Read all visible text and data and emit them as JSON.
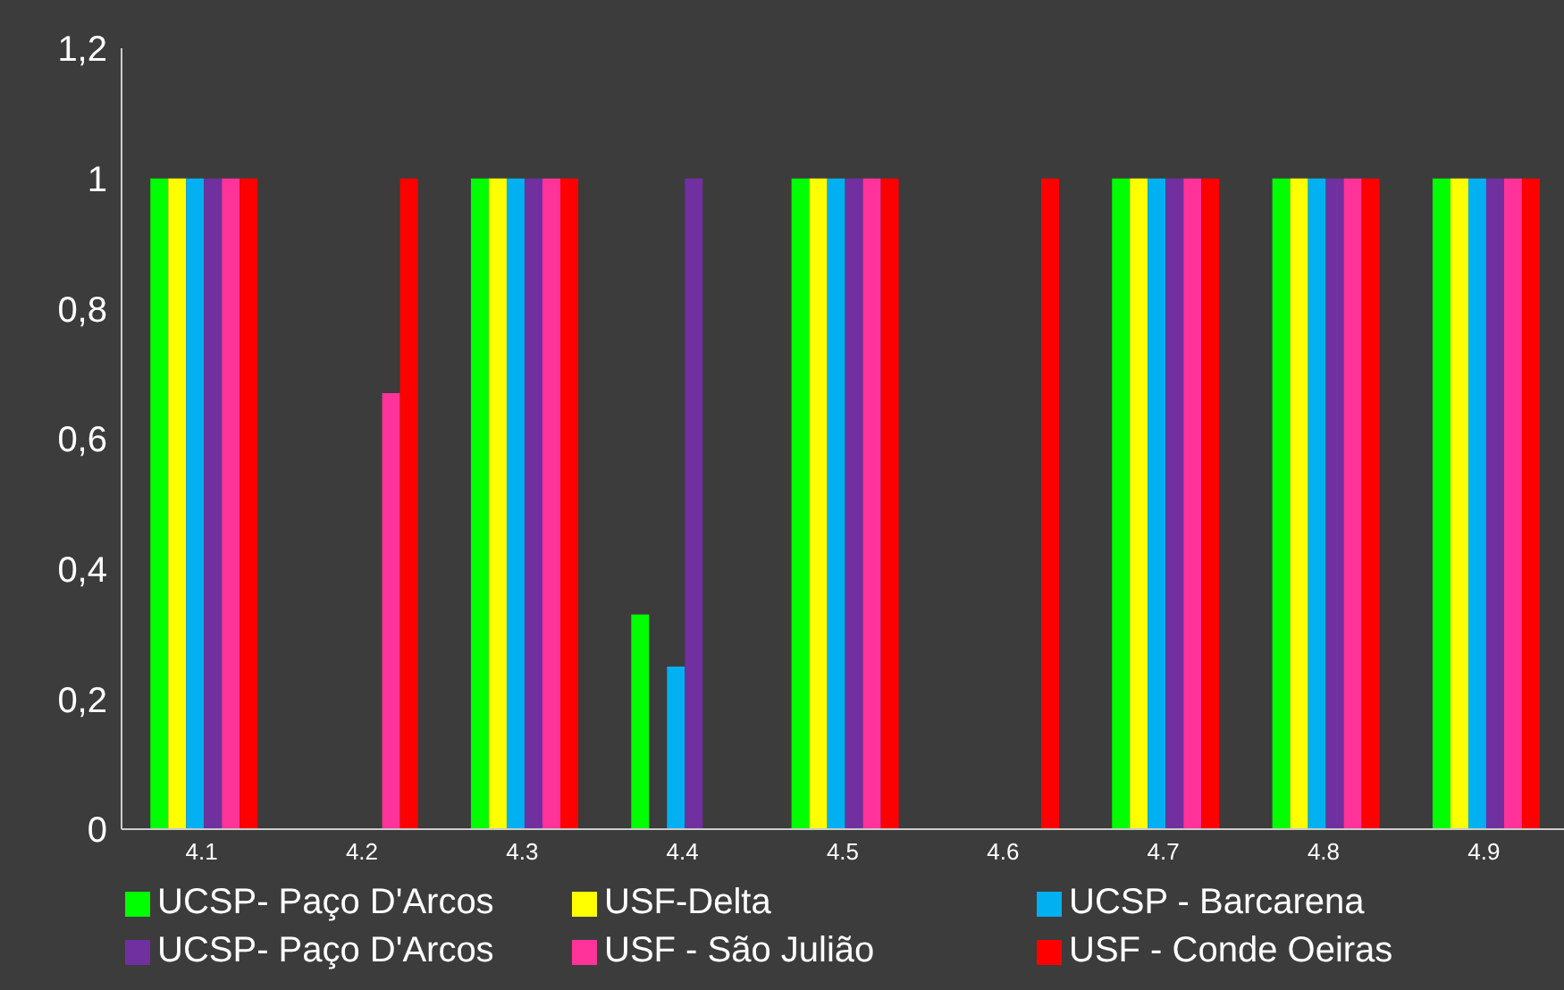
{
  "chart_data": {
    "type": "bar",
    "categories": [
      "4.1",
      "4.2",
      "4.3",
      "4.4",
      "4.5",
      "4.6",
      "4.7",
      "4.8",
      "4.9"
    ],
    "series": [
      {
        "name": "UCSP- Paço D'Arcos",
        "color": "#00ff00",
        "values": [
          1,
          0,
          1,
          0.33,
          1,
          0,
          1,
          1,
          1
        ]
      },
      {
        "name": "USF-Delta",
        "color": "#ffff00",
        "values": [
          1,
          0,
          1,
          0,
          1,
          0,
          1,
          1,
          1
        ]
      },
      {
        "name": "UCSP - Barcarena",
        "color": "#00b0f0",
        "values": [
          1,
          0,
          1,
          0.25,
          1,
          0,
          1,
          1,
          1
        ]
      },
      {
        "name": "UCSP- Paço D'Arcos",
        "color": "#7030a0",
        "values": [
          1,
          0,
          1,
          1,
          1,
          0,
          1,
          1,
          1
        ]
      },
      {
        "name": "USF - São Julião",
        "color": "#ff3399",
        "values": [
          1,
          0.67,
          1,
          0,
          1,
          0,
          1,
          1,
          1
        ]
      },
      {
        "name": "USF - Conde Oeiras",
        "color": "#ff0000",
        "values": [
          1,
          1,
          1,
          0,
          1,
          1,
          1,
          1,
          1
        ]
      }
    ],
    "ylim": [
      0,
      1.2
    ],
    "yticks": [
      0,
      {
        "value": 0.2,
        "label": "0,2"
      },
      {
        "value": 0.4,
        "label": "0,4"
      },
      {
        "value": 0.6,
        "label": "0,6"
      },
      {
        "value": 0.8,
        "label": "0,8"
      },
      1,
      {
        "value": 1.2,
        "label": "1,2"
      }
    ],
    "grid": false,
    "legend": "bottom"
  }
}
